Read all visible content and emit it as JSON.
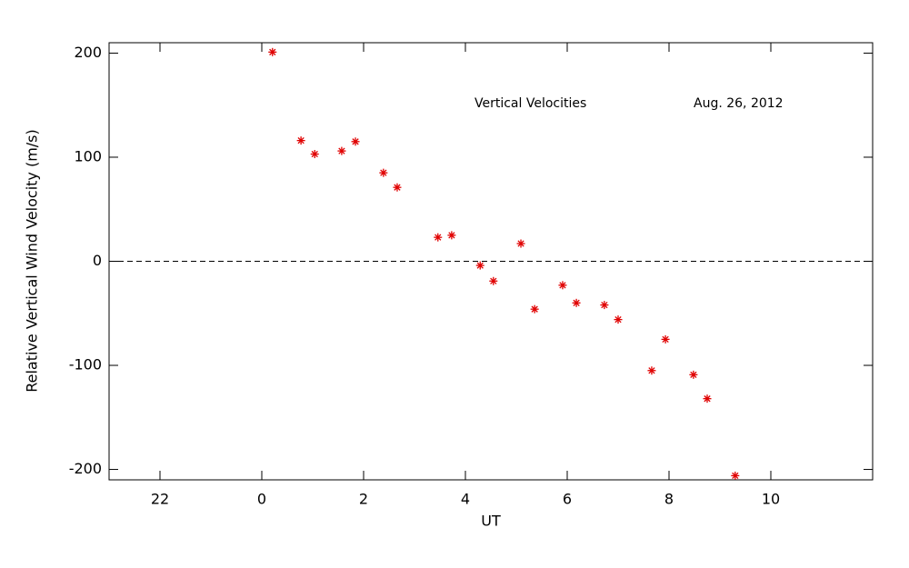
{
  "chart_data": {
    "type": "scatter",
    "x_label": "UT",
    "y_label": "Relative Vertical Wind Velocity (m/s)",
    "annotations": [
      "Vertical Velocities",
      "Aug. 26, 2012"
    ],
    "xlim": [
      -3,
      12
    ],
    "ylim": [
      -210,
      210
    ],
    "xticks": [
      {
        "value": -2,
        "label": "22"
      },
      0,
      2,
      4,
      6,
      8,
      10
    ],
    "yticks": [
      -200,
      -100,
      0,
      100,
      200
    ],
    "reference_line": 0,
    "color": "#e00000",
    "x": [
      0.21,
      0.77,
      1.04,
      1.57,
      1.84,
      2.39,
      2.66,
      3.46,
      3.73,
      4.29,
      4.55,
      5.09,
      5.36,
      5.91,
      6.18,
      6.73,
      7.0,
      7.66,
      7.93,
      8.48,
      8.75,
      9.3
    ],
    "values": [
      201,
      116,
      103,
      106,
      115,
      85,
      71,
      23,
      25,
      -4,
      -19,
      17,
      -46,
      -23,
      -40,
      -42,
      -56,
      -105,
      -75,
      -109,
      -132,
      -206
    ]
  }
}
